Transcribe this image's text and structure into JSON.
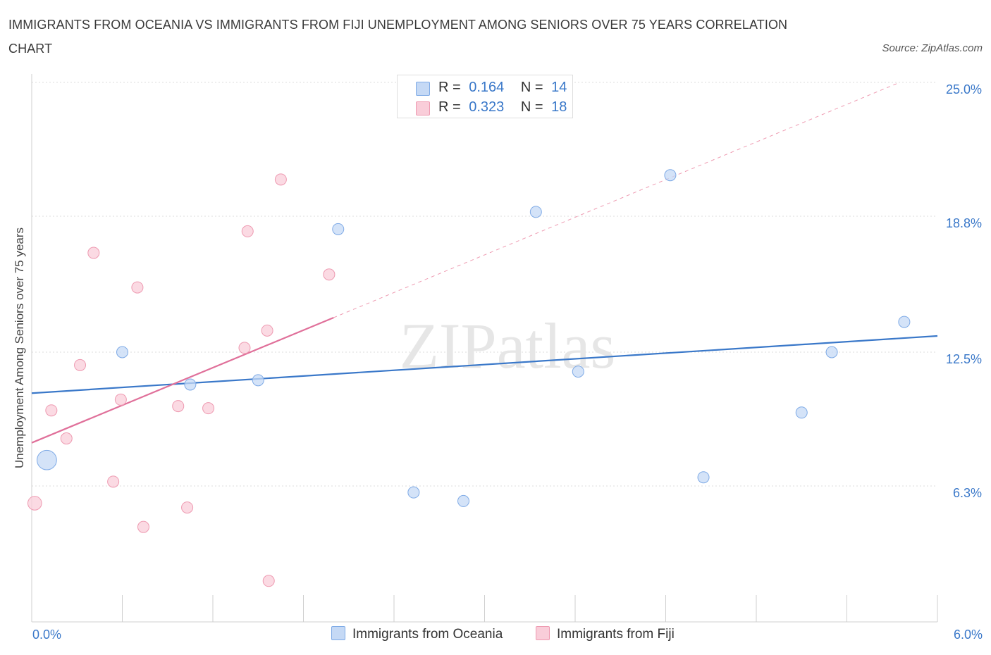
{
  "title": "IMMIGRANTS FROM OCEANIA VS IMMIGRANTS FROM FIJI UNEMPLOYMENT AMONG SENIORS OVER 75 YEARS CORRELATION CHART",
  "source": "Source: ZipAtlas.com",
  "watermark": "ZIPatlas",
  "legend": {
    "r_label": "R =",
    "n_label": "N =",
    "series": [
      {
        "name": "Immigrants from Oceania",
        "r": "0.164",
        "n": "14",
        "fill": "#c5d9f5",
        "stroke": "#7eaae6"
      },
      {
        "name": "Immigrants from Fiji",
        "r": "0.323",
        "n": "18",
        "fill": "#f9cdd9",
        "stroke": "#ee9ab1"
      }
    ]
  },
  "chart_data": {
    "type": "scatter",
    "title": "IMMIGRANTS FROM OCEANIA VS IMMIGRANTS FROM FIJI UNEMPLOYMENT AMONG SENIORS OVER 75 YEARS CORRELATION CHART",
    "xlabel": "",
    "ylabel": "Unemployment Among Seniors over 75 years",
    "xlim": [
      0,
      6.0
    ],
    "ylim": [
      0,
      25.0
    ],
    "x_tick_labels": [
      "0.0%",
      "6.0%"
    ],
    "y_ticks": [
      6.3,
      12.5,
      18.8,
      25.0
    ],
    "y_tick_labels": [
      "6.3%",
      "12.5%",
      "18.8%",
      "25.0%"
    ],
    "grid": true,
    "series": [
      {
        "name": "Immigrants from Oceania",
        "color": "#3a78c9",
        "points": [
          {
            "x": 0.1,
            "y": 7.5,
            "size": 3
          },
          {
            "x": 0.6,
            "y": 12.5,
            "size": 1
          },
          {
            "x": 1.05,
            "y": 11.0,
            "size": 1
          },
          {
            "x": 1.5,
            "y": 11.2,
            "size": 1
          },
          {
            "x": 2.03,
            "y": 18.2,
            "size": 1
          },
          {
            "x": 2.53,
            "y": 6.0,
            "size": 1
          },
          {
            "x": 2.86,
            "y": 5.6,
            "size": 1
          },
          {
            "x": 3.34,
            "y": 19.0,
            "size": 1
          },
          {
            "x": 3.62,
            "y": 11.6,
            "size": 1
          },
          {
            "x": 4.23,
            "y": 20.7,
            "size": 1
          },
          {
            "x": 4.45,
            "y": 6.7,
            "size": 1
          },
          {
            "x": 5.1,
            "y": 9.7,
            "size": 1
          },
          {
            "x": 5.3,
            "y": 12.5,
            "size": 1
          },
          {
            "x": 5.78,
            "y": 13.9,
            "size": 1
          }
        ],
        "trend": {
          "x0": 0.0,
          "y0": 10.6,
          "x1": 6.0,
          "y1": 13.25,
          "dashed_to": null
        }
      },
      {
        "name": "Immigrants from Fiji",
        "color": "#e0709a",
        "points": [
          {
            "x": 0.02,
            "y": 5.5,
            "size": 1.5
          },
          {
            "x": 0.13,
            "y": 9.8,
            "size": 1
          },
          {
            "x": 0.23,
            "y": 8.5,
            "size": 1
          },
          {
            "x": 0.32,
            "y": 11.9,
            "size": 1
          },
          {
            "x": 0.41,
            "y": 17.1,
            "size": 1
          },
          {
            "x": 0.54,
            "y": 6.5,
            "size": 1
          },
          {
            "x": 0.59,
            "y": 10.3,
            "size": 1
          },
          {
            "x": 0.7,
            "y": 15.5,
            "size": 1
          },
          {
            "x": 0.74,
            "y": 4.4,
            "size": 1
          },
          {
            "x": 0.97,
            "y": 10.0,
            "size": 1
          },
          {
            "x": 1.03,
            "y": 5.3,
            "size": 1
          },
          {
            "x": 1.17,
            "y": 9.9,
            "size": 1
          },
          {
            "x": 1.43,
            "y": 18.1,
            "size": 1
          },
          {
            "x": 1.41,
            "y": 12.7,
            "size": 1
          },
          {
            "x": 1.56,
            "y": 13.5,
            "size": 1
          },
          {
            "x": 1.57,
            "y": 1.9,
            "size": 1
          },
          {
            "x": 1.65,
            "y": 20.5,
            "size": 1
          },
          {
            "x": 1.97,
            "y": 16.1,
            "size": 1
          }
        ],
        "trend": {
          "x0": 0.0,
          "y0": 8.3,
          "x1": 2.0,
          "y1": 14.1,
          "dashed_to": {
            "x": 5.75,
            "y": 25.0
          }
        }
      }
    ]
  }
}
